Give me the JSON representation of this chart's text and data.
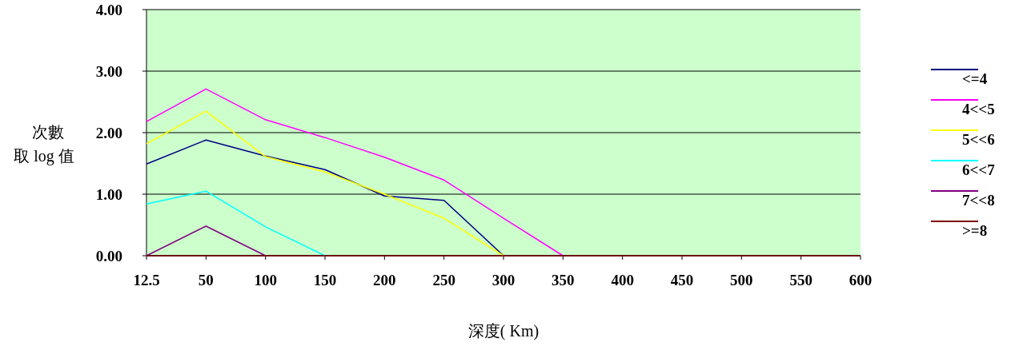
{
  "chart_data": {
    "type": "line",
    "xlabel": "深度( Km)",
    "ylabel": "次數取 log 值",
    "categories": [
      "12.5",
      "50",
      "100",
      "150",
      "200",
      "250",
      "300",
      "350",
      "400",
      "450",
      "500",
      "550",
      "600"
    ],
    "series": [
      {
        "name": "<=4",
        "color": "#000080",
        "values": [
          1.49,
          1.88,
          1.62,
          1.4,
          0.97,
          0.9,
          0,
          null,
          null,
          null,
          null,
          null,
          null
        ]
      },
      {
        "name": "4<<5",
        "color": "#ff00ff",
        "values": [
          2.18,
          2.71,
          2.21,
          1.92,
          1.6,
          1.23,
          0.61,
          0,
          null,
          null,
          null,
          null,
          null
        ]
      },
      {
        "name": "5<<6",
        "color": "#ffff00",
        "values": [
          1.82,
          2.35,
          1.61,
          1.36,
          1.0,
          0.61,
          0,
          null,
          null,
          null,
          null,
          null,
          null
        ]
      },
      {
        "name": "6<<7",
        "color": "#00ffff",
        "values": [
          0.84,
          1.05,
          0.47,
          0,
          null,
          null,
          null,
          null,
          null,
          null,
          null,
          null,
          null
        ]
      },
      {
        "name": "7<<8",
        "color": "#800080",
        "values": [
          0,
          0.48,
          0,
          null,
          null,
          null,
          null,
          null,
          null,
          null,
          null,
          null,
          null
        ]
      },
      {
        "name": ">=8",
        "color": "#800000",
        "values": [
          0,
          0,
          0,
          0,
          0,
          0,
          0,
          0,
          0,
          0,
          0,
          0,
          0
        ]
      }
    ],
    "ylim": [
      0,
      4
    ],
    "yticks": [
      {
        "value": 0,
        "label": "0.00"
      },
      {
        "value": 1,
        "label": "1.00"
      },
      {
        "value": 2,
        "label": "2.00"
      },
      {
        "value": 3,
        "label": "3.00"
      },
      {
        "value": 4,
        "label": "4.00"
      }
    ],
    "grid": "y",
    "legend": "right",
    "marker": "none",
    "line_style": "solid"
  }
}
